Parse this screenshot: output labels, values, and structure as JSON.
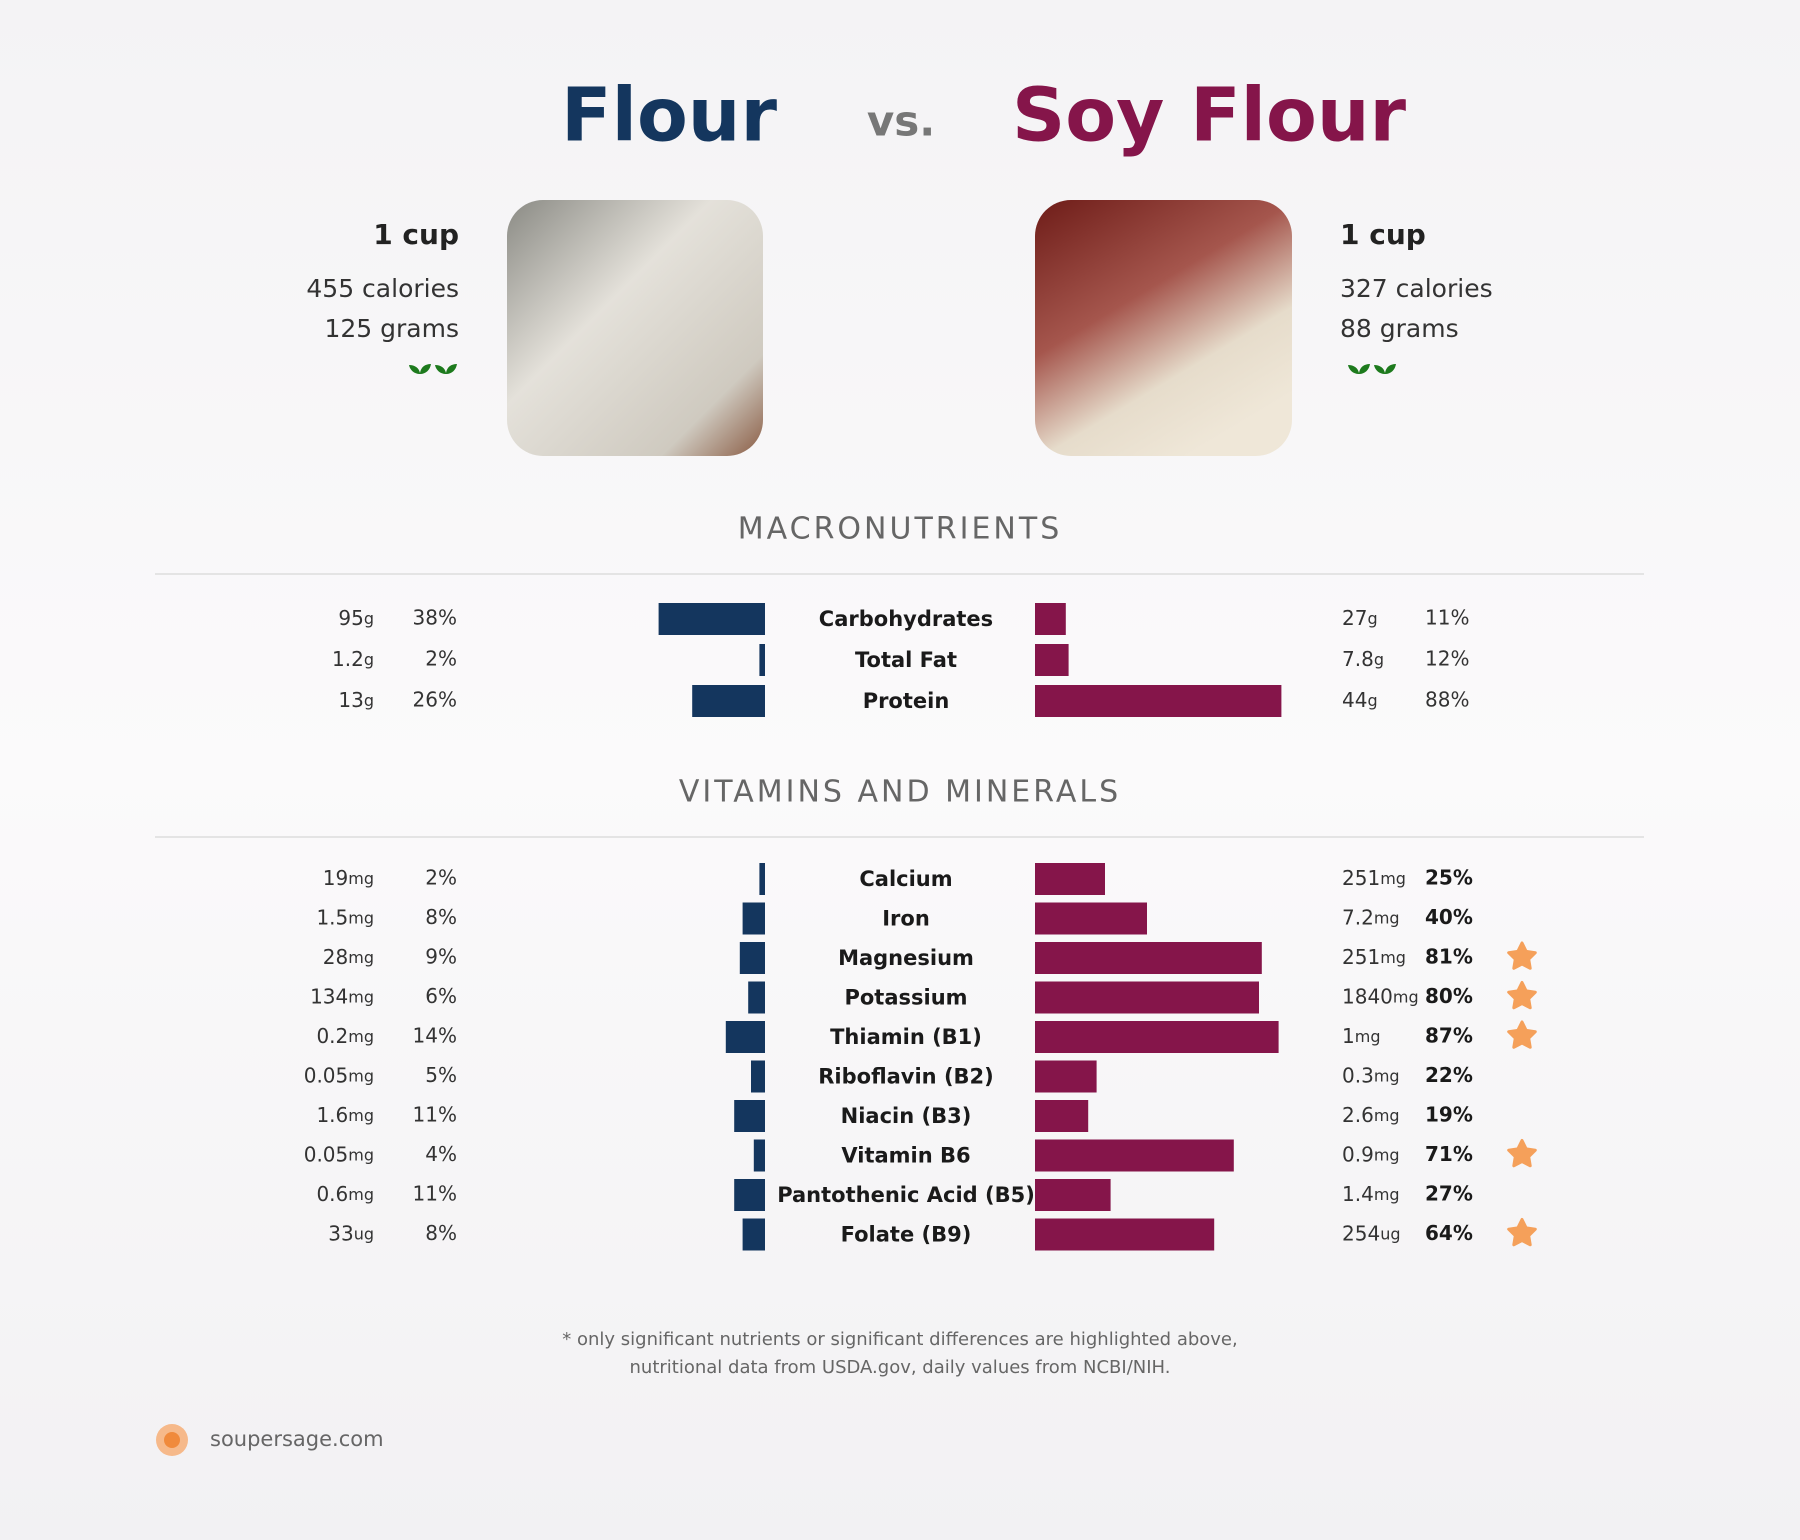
{
  "header": {
    "left_title": "Flour",
    "vs": "vs.",
    "right_title": "Soy Flour"
  },
  "foods": [
    {
      "serving": "1 cup",
      "calories": "455 calories",
      "grams": "125 grams"
    },
    {
      "serving": "1 cup",
      "calories": "327 calories",
      "grams": "88 grams"
    }
  ],
  "sections": [
    {
      "title": "MACRONUTRIENTS",
      "rows": [
        {
          "name": "Carbohydrates",
          "left": {
            "amount": 95,
            "unit": "g",
            "pct": 38,
            "pct_label": "38%"
          },
          "right": {
            "amount": 27,
            "unit": "g",
            "pct": 11,
            "pct_label": "11%"
          }
        },
        {
          "name": "Total Fat",
          "left": {
            "amount": 1.2,
            "unit": "g",
            "pct": 2,
            "pct_label": "2%"
          },
          "right": {
            "amount": 7.8,
            "unit": "g",
            "pct": 12,
            "pct_label": "12%"
          }
        },
        {
          "name": "Protein",
          "left": {
            "amount": 13,
            "unit": "g",
            "pct": 26,
            "pct_label": "26%"
          },
          "right": {
            "amount": 44,
            "unit": "g",
            "pct": 88,
            "pct_label": "88%"
          }
        }
      ]
    },
    {
      "title": "VITAMINS AND MINERALS",
      "rows": [
        {
          "name": "Calcium",
          "left": {
            "amount": 19,
            "unit": "mg",
            "pct": 2,
            "pct_label": "2%"
          },
          "right": {
            "amount": 251,
            "unit": "mg",
            "pct": 25,
            "pct_label": "25%"
          }
        },
        {
          "name": "Iron",
          "left": {
            "amount": 1.5,
            "unit": "mg",
            "pct": 8,
            "pct_label": "8%"
          },
          "right": {
            "amount": 7.2,
            "unit": "mg",
            "pct": 40,
            "pct_label": "40%"
          }
        },
        {
          "name": "Magnesium",
          "left": {
            "amount": 28,
            "unit": "mg",
            "pct": 9,
            "pct_label": "9%"
          },
          "right": {
            "amount": 251,
            "unit": "mg",
            "pct": 81,
            "pct_label": "81%"
          },
          "star": true
        },
        {
          "name": "Potassium",
          "left": {
            "amount": 134,
            "unit": "mg",
            "pct": 6,
            "pct_label": "6%"
          },
          "right": {
            "amount": 1840,
            "unit": "mg",
            "pct": 80,
            "pct_label": "80%"
          },
          "star": true
        },
        {
          "name": "Thiamin (B1)",
          "left": {
            "amount": 0.2,
            "unit": "mg",
            "pct": 14,
            "pct_label": "14%"
          },
          "right": {
            "amount": 1,
            "unit": "mg",
            "pct": 87,
            "pct_label": "87%"
          },
          "star": true
        },
        {
          "name": "Riboflavin (B2)",
          "left": {
            "amount": 0.05,
            "unit": "mg",
            "pct": 5,
            "pct_label": "5%"
          },
          "right": {
            "amount": 0.3,
            "unit": "mg",
            "pct": 22,
            "pct_label": "22%"
          }
        },
        {
          "name": "Niacin (B3)",
          "left": {
            "amount": 1.6,
            "unit": "mg",
            "pct": 11,
            "pct_label": "11%"
          },
          "right": {
            "amount": 2.6,
            "unit": "mg",
            "pct": 19,
            "pct_label": "19%"
          }
        },
        {
          "name": "Vitamin B6",
          "left": {
            "amount": 0.05,
            "unit": "mg",
            "pct": 4,
            "pct_label": "4%"
          },
          "right": {
            "amount": 0.9,
            "unit": "mg",
            "pct": 71,
            "pct_label": "71%"
          },
          "star": true
        },
        {
          "name": "Pantothenic Acid (B5)",
          "left": {
            "amount": 0.6,
            "unit": "mg",
            "pct": 11,
            "pct_label": "11%"
          },
          "right": {
            "amount": 1.4,
            "unit": "mg",
            "pct": 27,
            "pct_label": "27%"
          }
        },
        {
          "name": "Folate (B9)",
          "left": {
            "amount": 33,
            "unit": "ug",
            "pct": 8,
            "pct_label": "8%"
          },
          "right": {
            "amount": 254,
            "unit": "ug",
            "pct": 64,
            "pct_label": "64%"
          },
          "star": true
        }
      ]
    }
  ],
  "footnote": [
    "* only significant nutrients or significant differences are highlighted above,",
    "nutritional data from USDA.gov, daily values from NCBI/NIH."
  ],
  "brand": "soupersage.com"
}
